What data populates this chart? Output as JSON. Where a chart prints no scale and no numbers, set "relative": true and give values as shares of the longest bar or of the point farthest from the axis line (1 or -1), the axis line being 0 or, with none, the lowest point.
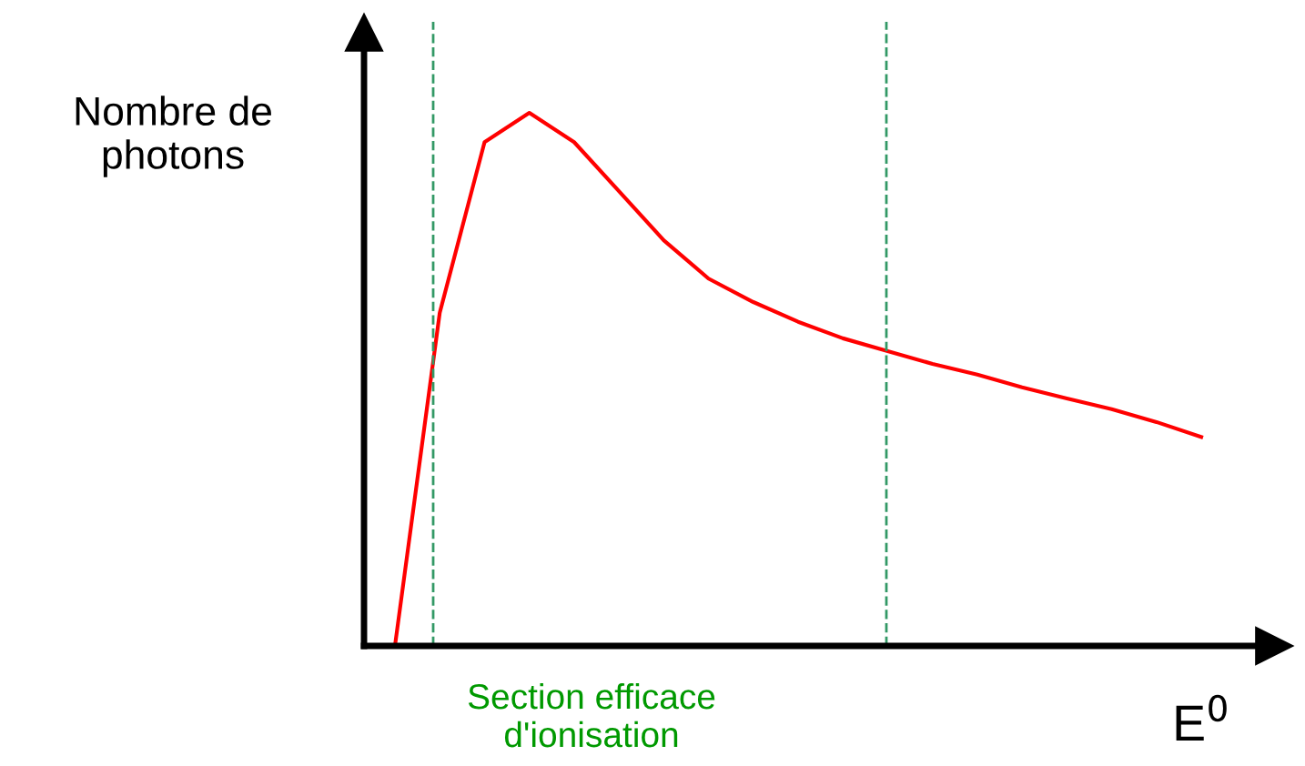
{
  "chart_data": {
    "type": "line",
    "relative": true,
    "ylabel": "Nombre de\nphotons",
    "xlabel": "E$^{0}$",
    "categories": [
      null,
      null,
      null,
      null,
      null,
      null,
      null,
      null,
      null,
      null,
      null,
      null,
      null,
      null,
      null,
      null,
      null,
      null,
      null
    ],
    "series": [
      {
        "color": "#ff0000",
        "values": [
          0,
          0.625,
          0.945,
          1.0,
          0.945,
          0.853,
          0.761,
          0.689,
          0.645,
          0.608,
          0.577,
          0.553,
          0.529,
          0.509,
          0.485,
          0.464,
          0.444,
          0.42,
          0.392
        ]
      }
    ],
    "annotations": [
      "Section efficace\nd'ionisation"
    ],
    "line_style": "solid"
  }
}
